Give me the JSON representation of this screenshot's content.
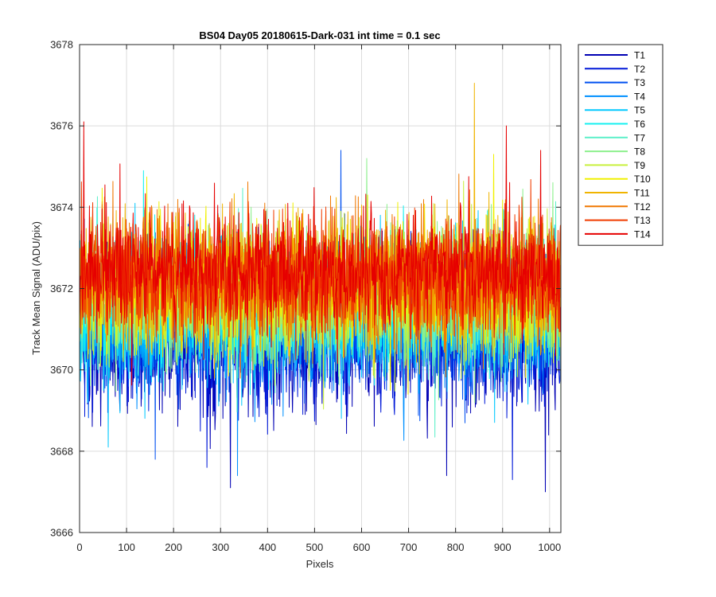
{
  "chart_data": {
    "type": "line",
    "title": "BS04 Day05 20180615-Dark-031 int time = 0.1 sec",
    "xlabel": "Pixels",
    "ylabel": "Track Mean Signal (ADU/pix)",
    "xlim": [
      0,
      1024
    ],
    "ylim": [
      3666,
      3678
    ],
    "xticks": [
      0,
      100,
      200,
      300,
      400,
      500,
      600,
      700,
      800,
      900,
      1000
    ],
    "yticks": [
      3666,
      3668,
      3670,
      3672,
      3674,
      3676,
      3678
    ],
    "grid": true,
    "legend_position": "outside-top-right",
    "n_points": 1024,
    "series": [
      {
        "name": "T1",
        "color": "#0000b4",
        "mean": 3670.7,
        "noise_sd": 0.85,
        "spikes": [
          {
            "x": 320,
            "y": 3667.1
          },
          {
            "x": 780,
            "y": 3667.4
          },
          {
            "x": 990,
            "y": 3667.0
          }
        ]
      },
      {
        "name": "T2",
        "color": "#0018d8",
        "mean": 3670.9,
        "noise_sd": 0.85,
        "spikes": [
          {
            "x": 270,
            "y": 3667.6
          },
          {
            "x": 920,
            "y": 3667.3
          }
        ]
      },
      {
        "name": "T3",
        "color": "#0050f0",
        "mean": 3671.1,
        "noise_sd": 0.85,
        "spikes": [
          {
            "x": 555,
            "y": 3675.4
          },
          {
            "x": 160,
            "y": 3667.8
          }
        ]
      },
      {
        "name": "T4",
        "color": "#0090ff",
        "mean": 3671.3,
        "noise_sd": 0.85,
        "spikes": [
          {
            "x": 335,
            "y": 3667.4
          }
        ]
      },
      {
        "name": "T5",
        "color": "#00c8ff",
        "mean": 3671.5,
        "noise_sd": 0.85,
        "spikes": [
          {
            "x": 60,
            "y": 3668.1
          }
        ]
      },
      {
        "name": "T6",
        "color": "#14f0f0",
        "mean": 3671.6,
        "noise_sd": 0.8,
        "spikes": [
          {
            "x": 135,
            "y": 3674.9
          }
        ]
      },
      {
        "name": "T7",
        "color": "#5af0c8",
        "mean": 3671.7,
        "noise_sd": 0.8,
        "spikes": []
      },
      {
        "name": "T8",
        "color": "#8cf08c",
        "mean": 3671.8,
        "noise_sd": 0.8,
        "spikes": [
          {
            "x": 610,
            "y": 3675.2
          }
        ]
      },
      {
        "name": "T9",
        "color": "#c8f03c",
        "mean": 3671.9,
        "noise_sd": 0.8,
        "spikes": []
      },
      {
        "name": "T10",
        "color": "#f0f000",
        "mean": 3672.0,
        "noise_sd": 0.8,
        "spikes": [
          {
            "x": 880,
            "y": 3675.3
          }
        ]
      },
      {
        "name": "T11",
        "color": "#f0b400",
        "mean": 3672.1,
        "noise_sd": 0.8,
        "spikes": [
          {
            "x": 839,
            "y": 3677.05
          }
        ]
      },
      {
        "name": "T12",
        "color": "#f07800",
        "mean": 3672.2,
        "noise_sd": 0.8,
        "spikes": []
      },
      {
        "name": "T13",
        "color": "#f03c00",
        "mean": 3672.3,
        "noise_sd": 0.75,
        "spikes": []
      },
      {
        "name": "T14",
        "color": "#e60000",
        "mean": 3672.4,
        "noise_sd": 0.75,
        "spikes": [
          {
            "x": 8,
            "y": 3676.1
          },
          {
            "x": 907,
            "y": 3676.0
          },
          {
            "x": 980,
            "y": 3675.4
          }
        ]
      }
    ]
  }
}
